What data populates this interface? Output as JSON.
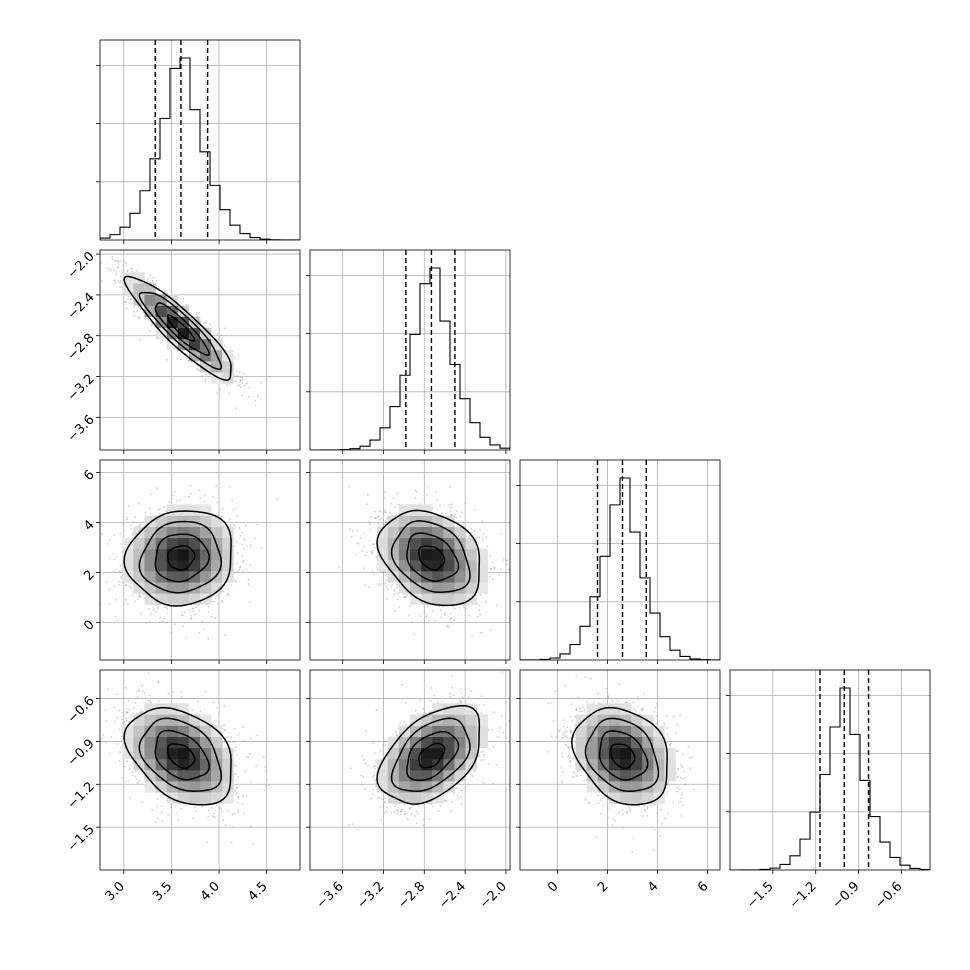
{
  "chart_data": {
    "type": "corner",
    "parameters": [
      {
        "mean": 3.6,
        "std": 0.28,
        "lim": [
          2.75,
          4.85
        ],
        "ticks": [
          3.0,
          3.5,
          4.0,
          4.5
        ],
        "tick_labels": [
          "3.0",
          "3.5",
          "4.0",
          "4.5"
        ],
        "quantiles": [
          3.33,
          3.6,
          3.88
        ]
      },
      {
        "mean": -2.73,
        "std": 0.25,
        "lim": [
          -3.92,
          -1.96
        ],
        "ticks": [
          -3.6,
          -3.2,
          -2.8,
          -2.4,
          -2.0
        ],
        "tick_labels": [
          "−3.6",
          "−3.2",
          "−2.8",
          "−2.4",
          "−2.0"
        ],
        "quantiles": [
          -2.98,
          -2.73,
          -2.5
        ]
      },
      {
        "mean": 2.6,
        "std": 0.95,
        "lim": [
          -1.5,
          6.5
        ],
        "ticks": [
          0,
          2,
          4,
          6
        ],
        "tick_labels": [
          "0",
          "2",
          "4",
          "6"
        ],
        "quantiles": [
          1.6,
          2.6,
          3.55
        ]
      },
      {
        "mean": -1.0,
        "std": 0.17,
        "lim": [
          -1.8,
          -0.4
        ],
        "ticks": [
          -1.5,
          -1.2,
          -0.9,
          -0.6
        ],
        "tick_labels": [
          "−1.5",
          "−1.2",
          "−0.9",
          "−0.6"
        ],
        "quantiles": [
          -1.17,
          -1.0,
          -0.83
        ]
      }
    ],
    "correlations": [
      [
        1.0,
        -0.9,
        0.08,
        -0.35
      ],
      [
        -0.9,
        1.0,
        -0.28,
        0.45
      ],
      [
        0.08,
        -0.28,
        1.0,
        -0.25
      ],
      [
        -0.35,
        0.45,
        -0.25,
        1.0
      ]
    ],
    "histogram_bins": 20,
    "contour_levels_sigma": [
      0.5,
      1.0,
      1.5,
      2.0
    ],
    "grid": true,
    "title": "",
    "axis_labels": []
  }
}
